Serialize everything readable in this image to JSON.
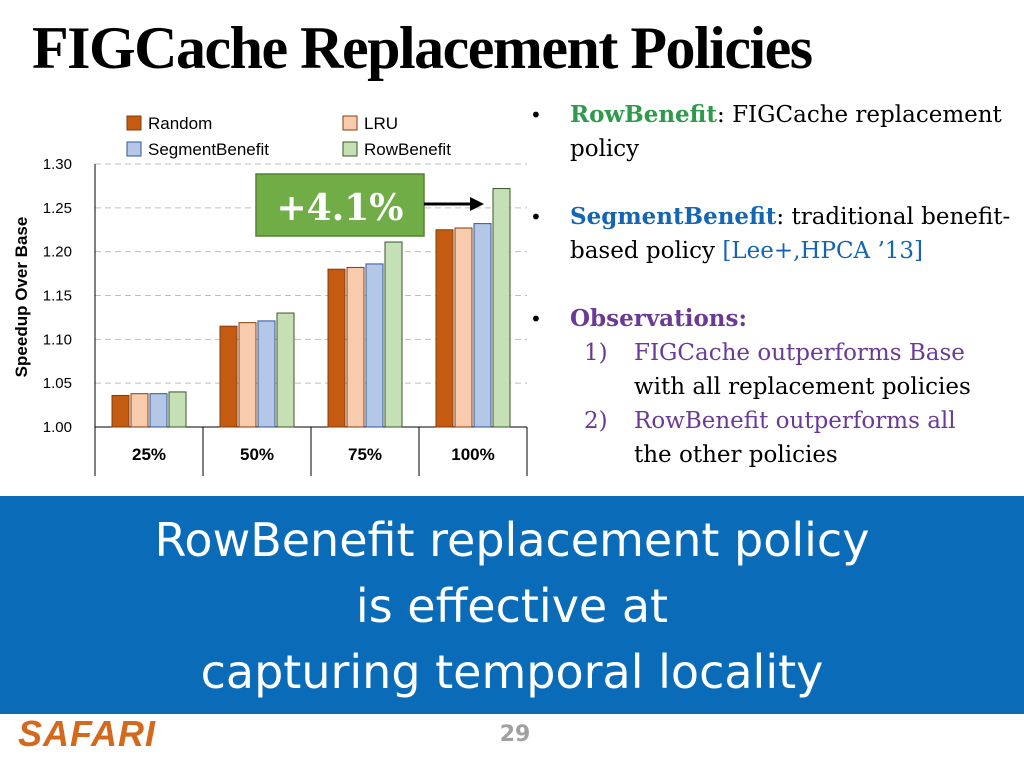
{
  "slide": {
    "title": "FIGCache Replacement Policies",
    "page_number": "29",
    "logo_text": "SAFARI"
  },
  "bullets": {
    "b1_term": "RowBenefit",
    "b1_text": ": FIGCache replacement policy",
    "b2_term": "SegmentBenefit",
    "b2_text": ": traditional benefit-based policy ",
    "b2_cite": "[Lee+,HPCA ’13]",
    "b3_term": "Observations:",
    "obs": [
      {
        "num": "1)",
        "line1": "FIGCache outperforms Base",
        "line2": "with all replacement policies"
      },
      {
        "num": "2)",
        "line1": "RowBenefit outperforms all",
        "line2": "the other policies"
      }
    ]
  },
  "banner": {
    "line1": "RowBenefit replacement policy",
    "line2": "is effective at",
    "line3": "capturing temporal locality"
  },
  "colors": {
    "random": "#c55a11",
    "lru": "#f8cbad",
    "segment": "#b4c7e7",
    "row": "#c5e0b4",
    "callout": "#70ad47",
    "banner": "#0a6cb8"
  },
  "chart_data": {
    "type": "bar",
    "categories": [
      "25%",
      "50%",
      "75%",
      "100%"
    ],
    "series": [
      {
        "name": "Random",
        "values": [
          1.036,
          1.115,
          1.18,
          1.225
        ]
      },
      {
        "name": "LRU",
        "values": [
          1.038,
          1.119,
          1.182,
          1.227
        ]
      },
      {
        "name": "SegmentBenefit",
        "values": [
          1.038,
          1.121,
          1.186,
          1.232
        ]
      },
      {
        "name": "RowBenefit",
        "values": [
          1.04,
          1.13,
          1.211,
          1.272
        ]
      }
    ],
    "ylabel": "Speedup Over Base",
    "ylim": [
      1.0,
      1.3
    ],
    "yticks": [
      "1.00",
      "1.05",
      "1.10",
      "1.15",
      "1.20",
      "1.25",
      "1.30"
    ],
    "grid": true,
    "legend": "top",
    "annotation": "+4.1%"
  }
}
